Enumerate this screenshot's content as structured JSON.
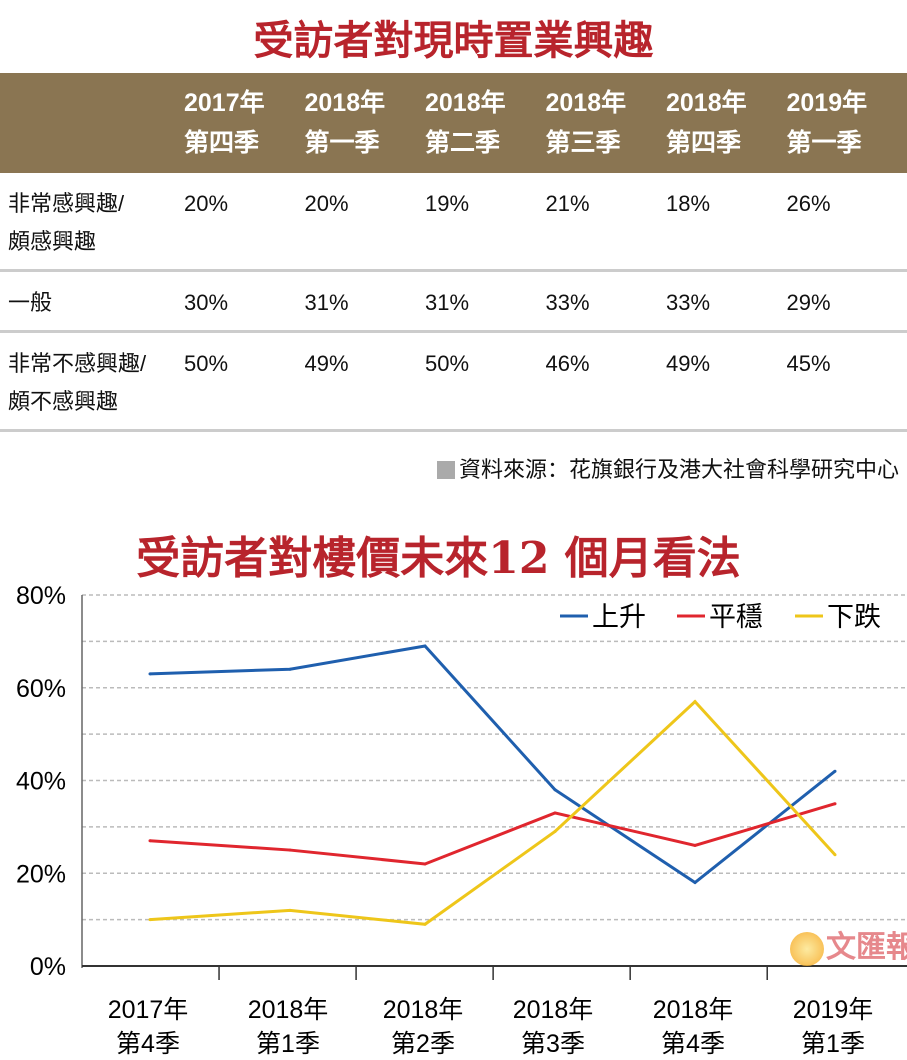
{
  "table": {
    "title": "受訪者對現時置業興趣",
    "headers": [
      [
        "2017年",
        "第四季"
      ],
      [
        "2018年",
        "第一季"
      ],
      [
        "2018年",
        "第二季"
      ],
      [
        "2018年",
        "第三季"
      ],
      [
        "2018年",
        "第四季"
      ],
      [
        "2019年",
        "第一季"
      ]
    ],
    "rows": [
      {
        "label": [
          "非常感興趣/",
          "頗感興趣"
        ],
        "values": [
          "20%",
          "20%",
          "19%",
          "21%",
          "18%",
          "26%"
        ]
      },
      {
        "label": [
          "一般"
        ],
        "values": [
          "30%",
          "31%",
          "31%",
          "33%",
          "33%",
          "29%"
        ]
      },
      {
        "label": [
          "非常不感興趣/",
          "頗不感興趣"
        ],
        "values": [
          "50%",
          "49%",
          "50%",
          "46%",
          "49%",
          "45%"
        ]
      }
    ],
    "source": "資料來源：花旗銀行及港大社會科學研究中心"
  },
  "chart_data": {
    "type": "line",
    "title": "受訪者對樓價未來12 個月看法",
    "categories": [
      [
        "2017年",
        "第4季"
      ],
      [
        "2018年",
        "第1季"
      ],
      [
        "2018年",
        "第2季"
      ],
      [
        "2018年",
        "第3季"
      ],
      [
        "2018年",
        "第4季"
      ],
      [
        "2019年",
        "第1季"
      ]
    ],
    "series": [
      {
        "name": "上升",
        "color": "#1f5fae",
        "values": [
          63,
          64,
          69,
          38,
          18,
          42
        ]
      },
      {
        "name": "平穩",
        "color": "#e0262e",
        "values": [
          27,
          25,
          22,
          33,
          26,
          35
        ]
      },
      {
        "name": "下跌",
        "color": "#eec61a",
        "values": [
          10,
          12,
          9,
          29,
          57,
          24
        ]
      }
    ],
    "yticks": [
      "0%",
      "20%",
      "40%",
      "60%",
      "80%"
    ],
    "ylim": [
      0,
      80
    ],
    "grid": true,
    "legend": "top-right"
  },
  "logo": "文匯報"
}
